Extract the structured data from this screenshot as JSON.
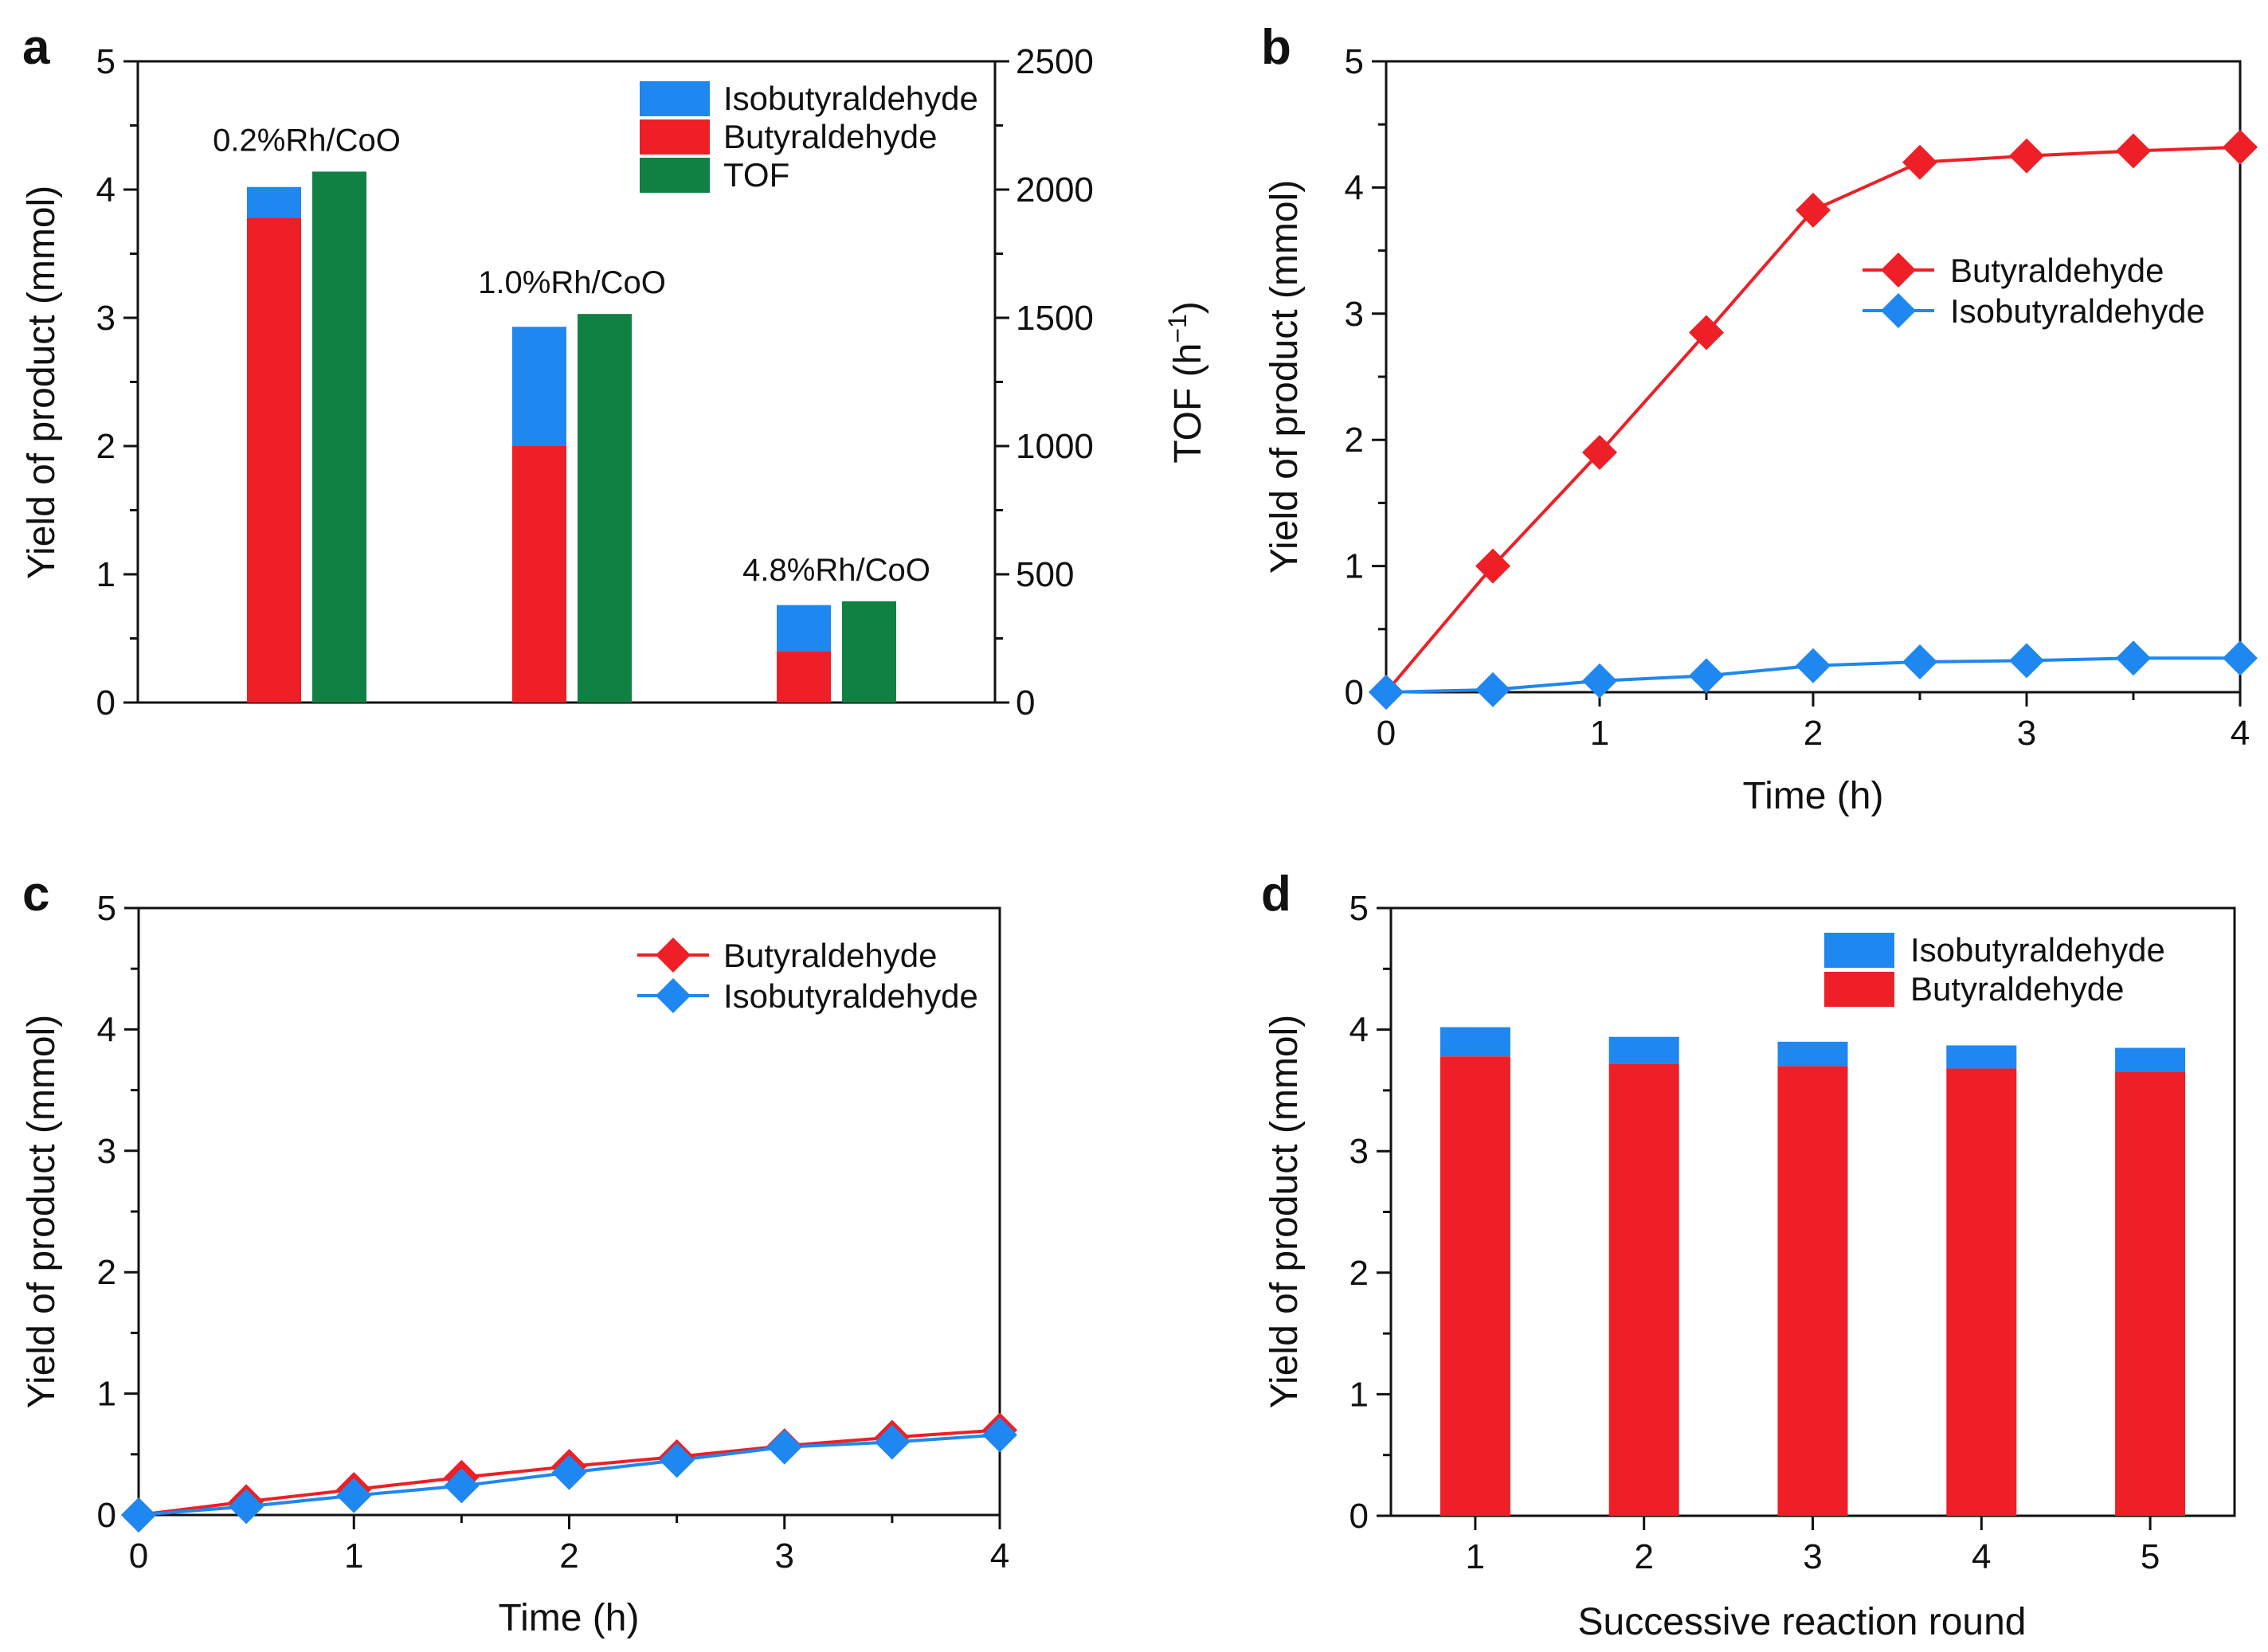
{
  "colors": {
    "butyraldehyde": "#ee1f26",
    "isobutyraldehyde": "#1e87f0",
    "tof": "#118043",
    "axis": "#111111"
  },
  "chart_data": [
    {
      "panel": "a",
      "type": "bar",
      "categories": [
        "0.2%Rh/CoO",
        "1.0%Rh/CoO",
        "4.8%Rh/CoO"
      ],
      "series": [
        {
          "name": "Butyraldehyde",
          "values": [
            3.78,
            2.0,
            0.4
          ],
          "axis": "left",
          "stack": "yield"
        },
        {
          "name": "Isobutyraldehyde",
          "values": [
            0.24,
            0.93,
            0.36
          ],
          "axis": "left",
          "stack": "yield"
        },
        {
          "name": "TOF",
          "values": [
            2070,
            1515,
            395
          ],
          "axis": "right"
        }
      ],
      "legend": [
        "Isobutyraldehyde",
        "Butyraldehyde",
        "TOF"
      ],
      "ylabel": "Yield of product (mmol)",
      "ylabel2_main": "TOF (h",
      "ylabel2_sup": "−1",
      "ylabel2_close": ")",
      "ylim": [
        0,
        5
      ],
      "ylim2": [
        0,
        2500
      ],
      "yticks": [
        0,
        1,
        2,
        3,
        4,
        5
      ],
      "yticks2": [
        0,
        500,
        1000,
        1500,
        2000,
        2500
      ]
    },
    {
      "panel": "b",
      "type": "line",
      "x": [
        0,
        0.5,
        1,
        1.5,
        2,
        2.5,
        3,
        3.5,
        4
      ],
      "series": [
        {
          "name": "Butyraldehyde",
          "values": [
            0,
            1.0,
            1.9,
            2.85,
            3.82,
            4.2,
            4.25,
            4.29,
            4.32
          ]
        },
        {
          "name": "Isobutyraldehyde",
          "values": [
            0,
            0.02,
            0.09,
            0.13,
            0.21,
            0.24,
            0.25,
            0.27,
            0.27
          ]
        }
      ],
      "xlabel": "Time (h)",
      "ylabel": "Yield of product (mmol)",
      "xlim": [
        0,
        4
      ],
      "ylim": [
        0,
        5
      ],
      "xticks": [
        0,
        1,
        2,
        3,
        4
      ],
      "yticks": [
        0,
        1,
        2,
        3,
        4,
        5
      ]
    },
    {
      "panel": "c",
      "type": "line",
      "x": [
        0,
        0.5,
        1,
        1.5,
        2,
        2.5,
        3,
        3.5,
        4
      ],
      "series": [
        {
          "name": "Butyraldehyde",
          "values": [
            0,
            0.11,
            0.21,
            0.31,
            0.4,
            0.48,
            0.57,
            0.64,
            0.7
          ]
        },
        {
          "name": "Isobutyraldehyde",
          "values": [
            0,
            0.07,
            0.16,
            0.24,
            0.35,
            0.45,
            0.56,
            0.6,
            0.66
          ]
        }
      ],
      "xlabel": "Time (h)",
      "ylabel": "Yield of product (mmol)",
      "xlim": [
        0,
        4
      ],
      "ylim": [
        0,
        5
      ],
      "xticks": [
        0,
        1,
        2,
        3,
        4
      ],
      "yticks": [
        0,
        1,
        2,
        3,
        4,
        5
      ]
    },
    {
      "panel": "d",
      "type": "bar",
      "categories": [
        "1",
        "2",
        "3",
        "4",
        "5"
      ],
      "series": [
        {
          "name": "Butyraldehyde",
          "values": [
            3.78,
            3.72,
            3.7,
            3.68,
            3.65
          ]
        },
        {
          "name": "Isobutyraldehyde",
          "values": [
            0.24,
            0.22,
            0.2,
            0.19,
            0.2
          ]
        }
      ],
      "legend": [
        "Isobutyraldehyde",
        "Butyraldehyde"
      ],
      "xlabel": "Successive reaction round",
      "ylabel": "Yield of product (mmol)",
      "ylim": [
        0,
        5
      ],
      "yticks": [
        0,
        1,
        2,
        3,
        4,
        5
      ]
    }
  ]
}
